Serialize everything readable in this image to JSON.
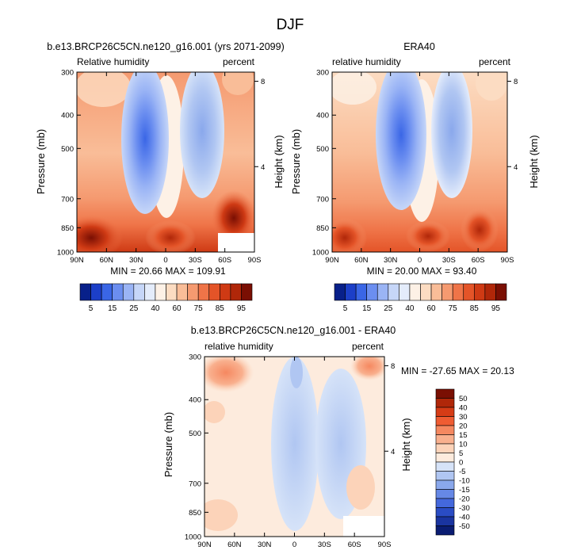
{
  "figure": {
    "title": "DJF"
  },
  "chart_data": [
    {
      "type": "heatmap",
      "title": "b.e13.BRCP26C5CN.ne120_g16.001 (yrs 2071-2099)",
      "left_string": "Relative humidity",
      "right_string": "percent",
      "xlabel": "",
      "ylabel": "Pressure (mb)",
      "ylabel_right": "Height (km)",
      "x_ticks": [
        "90N",
        "60N",
        "30N",
        "0",
        "30S",
        "60S",
        "90S"
      ],
      "y_ticks": [
        "300",
        "400",
        "500",
        "700",
        "850",
        "1000"
      ],
      "y_right_ticks": [
        "8",
        "4"
      ],
      "xlim": [
        90,
        -90
      ],
      "ylim": [
        1000,
        300
      ],
      "stats": "MIN =  20.66  MAX = 109.91",
      "colorbar_labels": [
        "5",
        "15",
        "25",
        "40",
        "60",
        "75",
        "85",
        "95"
      ]
    },
    {
      "type": "heatmap",
      "title": "ERA40",
      "left_string": "relative humidity",
      "right_string": "percent",
      "xlabel": "",
      "ylabel": "Pressure (mb)",
      "ylabel_right": "Height (km)",
      "x_ticks": [
        "90N",
        "60N",
        "30N",
        "0",
        "30S",
        "60S",
        "90S"
      ],
      "y_ticks": [
        "300",
        "400",
        "500",
        "700",
        "850",
        "1000"
      ],
      "y_right_ticks": [
        "8",
        "4"
      ],
      "xlim": [
        90,
        -90
      ],
      "ylim": [
        1000,
        300
      ],
      "stats": "MIN =  20.00  MAX =  93.40",
      "colorbar_labels": [
        "5",
        "15",
        "25",
        "40",
        "60",
        "75",
        "85",
        "95"
      ]
    },
    {
      "type": "heatmap",
      "title": "b.e13.BRCP26C5CN.ne120_g16.001 - ERA40",
      "left_string": "relative humidity",
      "right_string": "percent",
      "xlabel": "",
      "ylabel": "Pressure (mb)",
      "ylabel_right": "Height (km)",
      "x_ticks": [
        "90N",
        "60N",
        "30N",
        "0",
        "30S",
        "60S",
        "90S"
      ],
      "y_ticks": [
        "300",
        "400",
        "500",
        "700",
        "850",
        "1000"
      ],
      "y_right_ticks": [
        "8",
        "4"
      ],
      "xlim": [
        90,
        -90
      ],
      "ylim": [
        1000,
        300
      ],
      "stats": "MIN = -27.65  MAX =  20.13",
      "colorbar_labels": [
        "50",
        "40",
        "30",
        "20",
        "15",
        "10",
        "5",
        "0",
        "-5",
        "-10",
        "-15",
        "-20",
        "-30",
        "-40",
        "-50"
      ]
    }
  ],
  "colors": {
    "abs_scale": [
      "#08208a",
      "#1c3fc8",
      "#3a66e6",
      "#6b8ef0",
      "#9ab4f5",
      "#c6d6f8",
      "#e4ecfb",
      "#fdf1e6",
      "#fcdcc2",
      "#f9bd98",
      "#f59a70",
      "#ef7448",
      "#e45428",
      "#cf3a14",
      "#b02709",
      "#7a0f03"
    ],
    "diff_scale": [
      "#7a0f03",
      "#b02709",
      "#d63c16",
      "#ef5c32",
      "#f58860",
      "#f9b08e",
      "#fcd3b9",
      "#fdebdd",
      "#d6e3f8",
      "#b0c6f2",
      "#8aa8ec",
      "#6688e6",
      "#4468dc",
      "#2a4cc4",
      "#1a34a0",
      "#0a1c72"
    ]
  }
}
